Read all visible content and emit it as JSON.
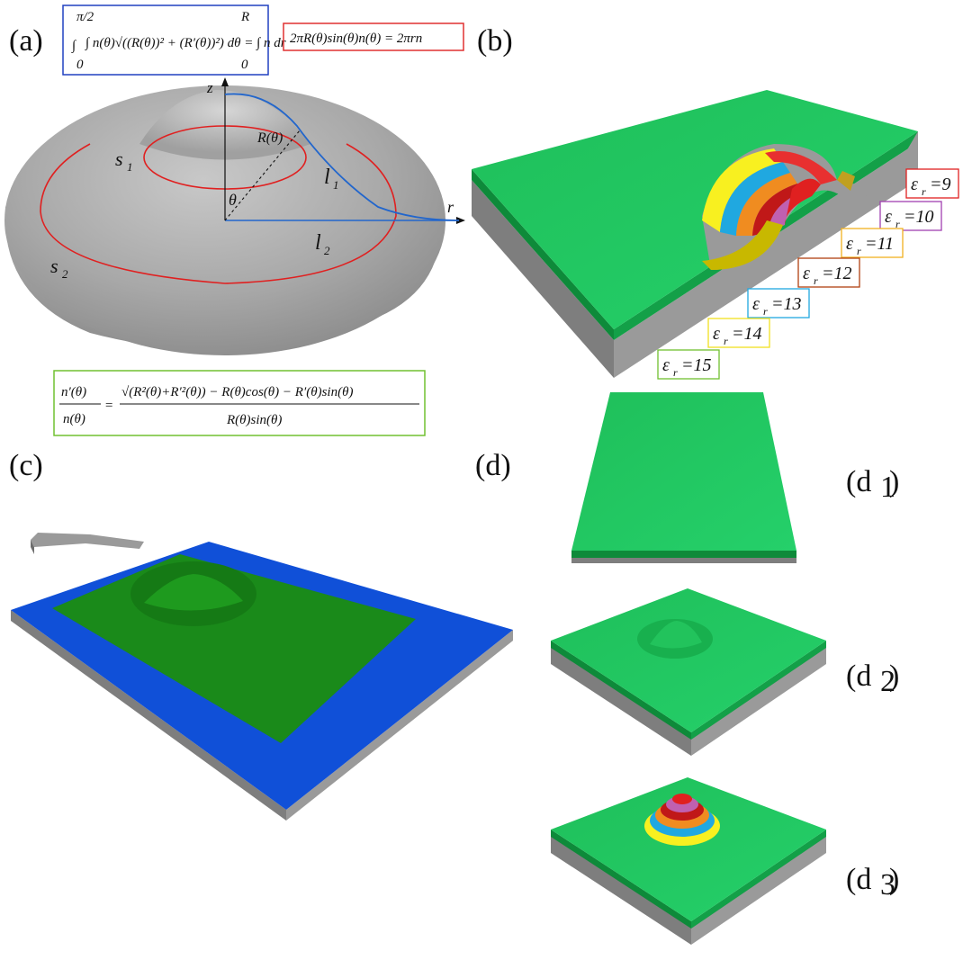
{
  "panels": {
    "a": "(a)",
    "b": "(b)",
    "c": "(c)",
    "d": "(d)",
    "d1": "(d",
    "d1_sub": "1",
    "d1_close": ")",
    "d2": "(d",
    "d2_sub": "2",
    "d2_close": ")",
    "d3": "(d",
    "d3_sub": "3",
    "d3_close": ")"
  },
  "panel_a": {
    "axis_z": "z",
    "axis_r": "r",
    "label_R": "R(θ)",
    "label_theta": "θ",
    "label_s1": "s",
    "label_s1_sub": "1",
    "label_s2": "s",
    "label_s2_sub": "2",
    "label_l1": "l",
    "label_l1_sub": "1",
    "label_l2": "l",
    "label_l2_sub": "2",
    "eq_blue": "∫ n(θ)√((R(θ))² + (R′(θ))²) dθ = ∫ n dr",
    "eq_blue_upper": "π/2",
    "eq_blue_lower": "0",
    "eq_blue_upper2": "R",
    "eq_blue_lower2": "0",
    "eq_red": "2πR(θ)sin(θ)n(θ) = 2πrn",
    "eq_green_lhs_num": "n′(θ)",
    "eq_green_lhs_den": "n(θ)",
    "eq_green_num": "√(R²(θ)+R′²(θ)) − R(θ)cos(θ) − R′(θ)sin(θ)",
    "eq_green_den": "R(θ)sin(θ)"
  },
  "panel_b": {
    "eps_labels": [
      {
        "text": "εr = 9",
        "color": "#e02020"
      },
      {
        "text": "εr = 10",
        "color": "#a040b0"
      },
      {
        "text": "εr = 11",
        "color": "#f0b020"
      },
      {
        "text": "εr = 12",
        "color": "#b04010"
      },
      {
        "text": "εr = 13",
        "color": "#20a8e0"
      },
      {
        "text": "εr = 14",
        "color": "#f0e020"
      },
      {
        "text": "εr = 15",
        "color": "#70c030"
      }
    ],
    "eps_symbol": "ε",
    "eps_sub": "r",
    "eps_values": [
      "=9",
      "=10",
      "=11",
      "=12",
      "=13",
      "=14",
      "=15"
    ]
  },
  "colors": {
    "green_top": "#1fbf5a",
    "green_dark": "#0e8a3a",
    "gray": "#8c8c8c",
    "blue": "#1050d8",
    "c_green": "#1a8a1a",
    "eq_blue": "#2040c0",
    "eq_red": "#e03030",
    "eq_green": "#70c030"
  }
}
